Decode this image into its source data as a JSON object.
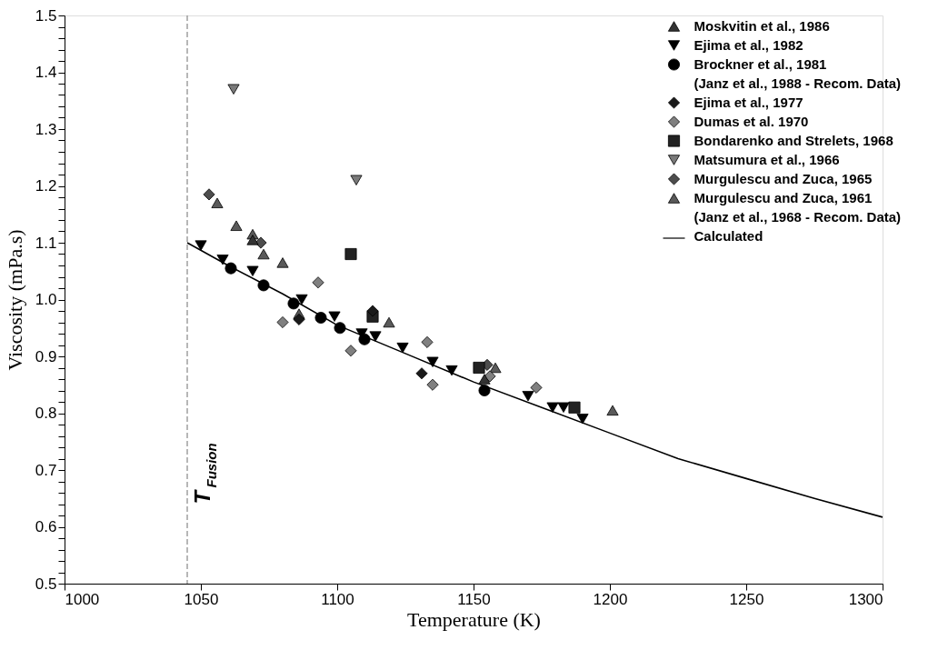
{
  "chart_data": {
    "type": "scatter",
    "xlabel": "Temperature (K)",
    "ylabel": "Viscosity (mPa.s)",
    "xlim": [
      1000,
      1300
    ],
    "xticks": [
      1000,
      1050,
      1100,
      1150,
      1200,
      1250,
      1300
    ],
    "ylim": [
      0.5,
      1.5
    ],
    "yticks": [
      0.5,
      {
        "value": 0.52,
        "label": null
      },
      {
        "value": 0.54,
        "label": null
      },
      {
        "value": 0.56,
        "label": null
      },
      {
        "value": 0.58,
        "label": null
      },
      0.6,
      {
        "value": 0.62,
        "label": null
      },
      {
        "value": 0.64,
        "label": null
      },
      {
        "value": 0.66,
        "label": null
      },
      {
        "value": 0.68,
        "label": null
      },
      0.7,
      {
        "value": 0.72,
        "label": null
      },
      {
        "value": 0.74,
        "label": null
      },
      {
        "value": 0.76,
        "label": null
      },
      {
        "value": 0.78,
        "label": null
      },
      0.8,
      {
        "value": 0.82,
        "label": null
      },
      {
        "value": 0.84,
        "label": null
      },
      {
        "value": 0.86,
        "label": null
      },
      {
        "value": 0.88,
        "label": null
      },
      0.9,
      {
        "value": 0.92,
        "label": null
      },
      {
        "value": 0.94,
        "label": null
      },
      {
        "value": 0.96,
        "label": null
      },
      {
        "value": 0.98,
        "label": null
      },
      {
        "value": 1,
        "label": "1.0"
      },
      {
        "value": 1.02,
        "label": null
      },
      {
        "value": 1.04,
        "label": null
      },
      {
        "value": 1.06,
        "label": null
      },
      {
        "value": 1.08,
        "label": null
      },
      1.1,
      {
        "value": 1.12,
        "label": null
      },
      {
        "value": 1.14,
        "label": null
      },
      {
        "value": 1.16,
        "label": null
      },
      {
        "value": 1.18,
        "label": null
      },
      1.2,
      {
        "value": 1.22,
        "label": null
      },
      {
        "value": 1.24,
        "label": null
      },
      {
        "value": 1.26,
        "label": null
      },
      {
        "value": 1.28,
        "label": null
      },
      1.3,
      {
        "value": 1.32,
        "label": null
      },
      {
        "value": 1.34,
        "label": null
      },
      {
        "value": 1.36,
        "label": null
      },
      {
        "value": 1.38,
        "label": null
      },
      1.4,
      {
        "value": 1.42,
        "label": null
      },
      {
        "value": 1.44,
        "label": null
      },
      {
        "value": 1.46,
        "label": null
      },
      {
        "value": 1.48,
        "label": null
      },
      1.5
    ],
    "grid": false,
    "legend": "top right",
    "ref_lines": [
      {
        "axis": "x",
        "value": 1045,
        "label": "T$_{Fusion}$",
        "line_style": "dashed",
        "color": "#888888"
      }
    ],
    "series": [
      {
        "name": "Moskvitin et al., 1986",
        "marker": "triangle",
        "color": "#333333",
        "x": [
          1069,
          1154
        ],
        "values": [
          1.105,
          0.86
        ]
      },
      {
        "name": "Ejima et al., 1982",
        "marker": "triangle-down",
        "color": "#000000",
        "x": [
          1050,
          1058,
          1069,
          1087,
          1099,
          1109,
          1114,
          1124,
          1135,
          1142,
          1170,
          1179,
          1183,
          1190
        ],
        "values": [
          1.095,
          1.07,
          1.05,
          1.0,
          0.97,
          0.94,
          0.935,
          0.915,
          0.89,
          0.875,
          0.83,
          0.81,
          0.81,
          0.79
        ]
      },
      {
        "name": "Brockner et al., 1981\n(Janz et al., 1988 - Recom. Data)",
        "marker": "circle",
        "color": "#000000",
        "x": [
          1061,
          1073,
          1084,
          1094,
          1101,
          1110,
          1154
        ],
        "values": [
          1.055,
          1.025,
          0.993,
          0.968,
          0.95,
          0.93,
          0.84
        ]
      },
      {
        "name": "Ejima et al., 1977",
        "marker": "diamond",
        "color": "#1a1a1a",
        "x": [
          1086,
          1113,
          1131
        ],
        "values": [
          0.965,
          0.98,
          0.87
        ]
      },
      {
        "name": "Dumas et al. 1970",
        "marker": "diamond",
        "color": "#808080",
        "x": [
          1080,
          1093,
          1105,
          1133,
          1135,
          1156,
          1173
        ],
        "values": [
          0.96,
          1.03,
          0.91,
          0.925,
          0.85,
          0.865,
          0.845
        ]
      },
      {
        "name": "Bondarenko and Strelets, 1968",
        "marker": "square",
        "color": "#222222",
        "x": [
          1105,
          1113,
          1152,
          1187
        ],
        "values": [
          1.08,
          0.97,
          0.88,
          0.81
        ]
      },
      {
        "name": "Matsumura et al., 1966",
        "marker": "triangle-down",
        "color": "#7a7a7a",
        "x": [
          1062,
          1107
        ],
        "values": [
          1.37,
          1.21
        ]
      },
      {
        "name": "Murgulescu and Zuca, 1965",
        "marker": "diamond",
        "color": "#4d4d4d",
        "x": [
          1053,
          1072,
          1155
        ],
        "values": [
          1.185,
          1.1,
          0.885
        ]
      },
      {
        "name": "Murgulescu and Zuca, 1961\n(Janz et al., 1968 - Recom. Data)",
        "marker": "triangle",
        "color": "#5a5a5a",
        "x": [
          1056,
          1063,
          1069,
          1073,
          1080,
          1086,
          1119,
          1158,
          1201
        ],
        "values": [
          1.17,
          1.13,
          1.115,
          1.08,
          1.065,
          0.975,
          0.96,
          0.88,
          0.805
        ]
      },
      {
        "name": "Calculated",
        "type": "line",
        "color": "#000000",
        "line_style": "solid",
        "x": [
          1045,
          1060,
          1080,
          1100,
          1125,
          1150,
          1175,
          1200,
          1225,
          1250,
          1275,
          1300
        ],
        "values": [
          1.1,
          1.06,
          1.01,
          0.955,
          0.905,
          0.855,
          0.81,
          0.765,
          0.72,
          0.685,
          0.65,
          0.617
        ]
      }
    ]
  }
}
